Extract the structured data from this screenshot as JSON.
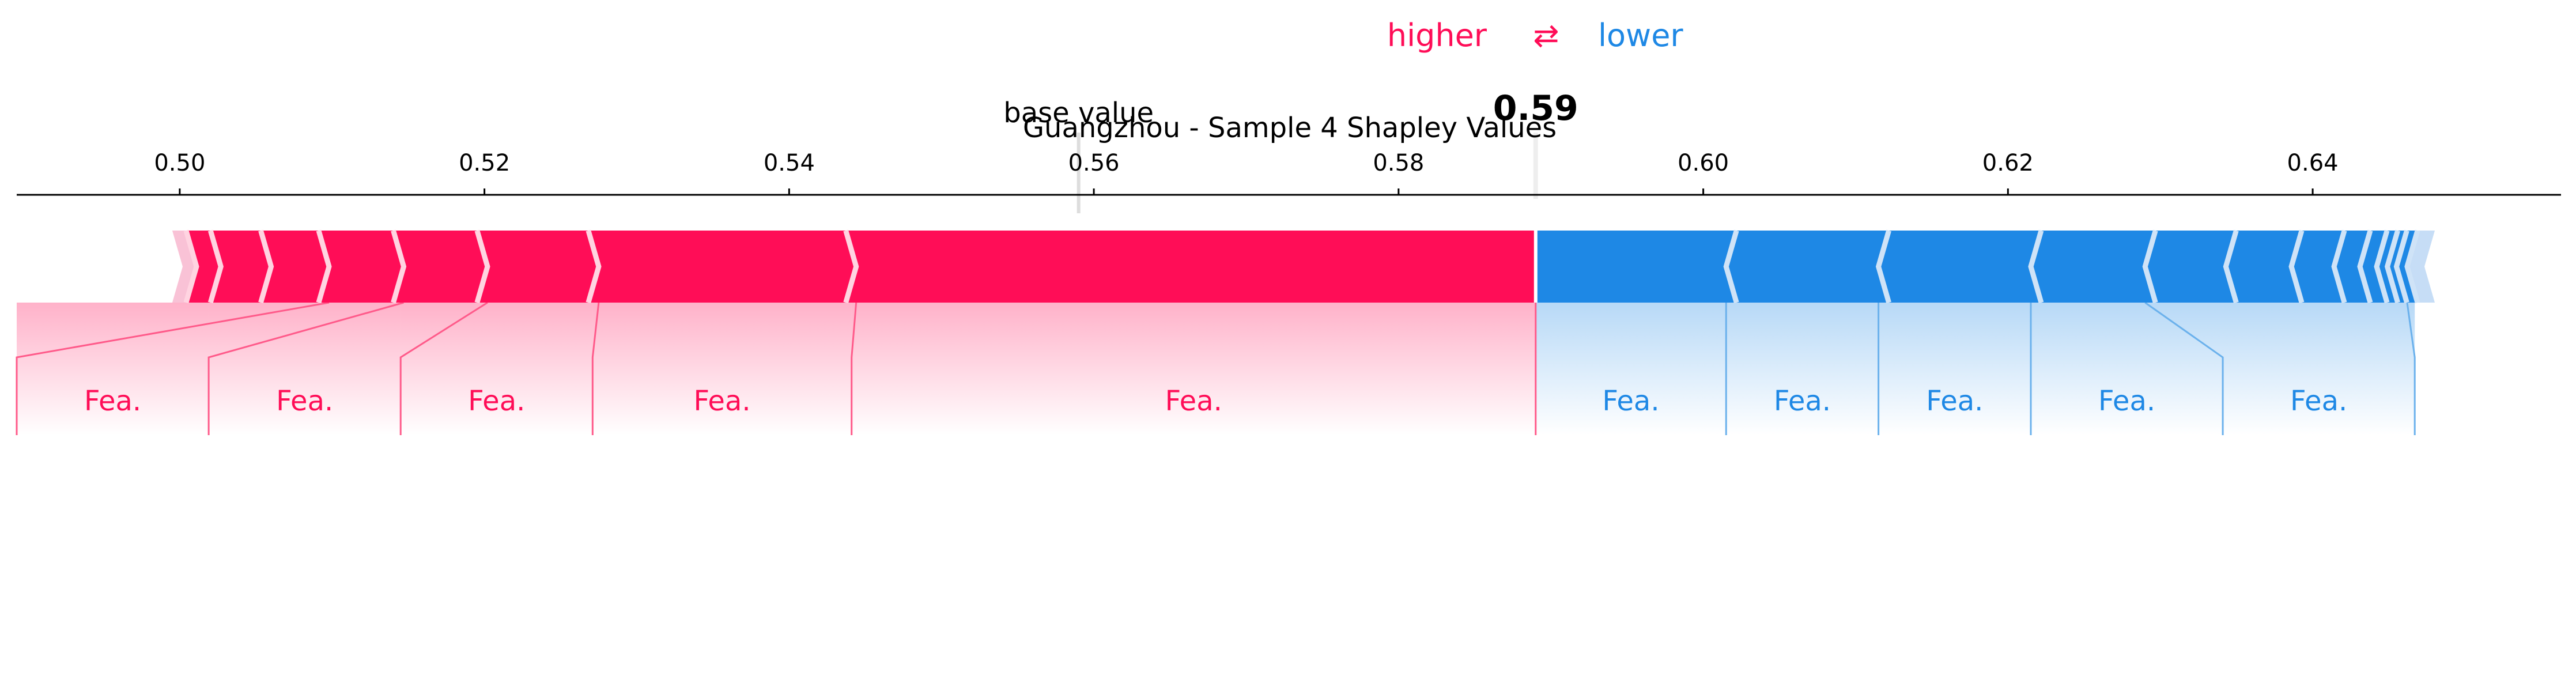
{
  "chart_data": {
    "type": "force",
    "title": "Guangzhou - Sample 4 Shapley Values",
    "legend": {
      "higher_label": "higher",
      "arrow_glyph": "⇄",
      "lower_label": "lower"
    },
    "base_value_label": "base value",
    "base_value": 0.559,
    "output_value": 0.589,
    "output_value_label": "0.59",
    "xlim": [
      0.4893,
      0.6563
    ],
    "ticks": [
      {
        "value": 0.5,
        "label": "0.50"
      },
      {
        "value": 0.52,
        "label": "0.52"
      },
      {
        "value": 0.54,
        "label": "0.54"
      },
      {
        "value": 0.56,
        "label": "0.56"
      },
      {
        "value": 0.58,
        "label": "0.58"
      },
      {
        "value": 0.6,
        "label": "0.60"
      },
      {
        "value": 0.62,
        "label": "0.62"
      },
      {
        "value": 0.64,
        "label": "0.64"
      }
    ],
    "higher_boundaries": [
      0.5011,
      0.5027,
      0.506,
      0.5098,
      0.5147,
      0.5202,
      0.5275,
      0.5444
    ],
    "lower_boundaries": [
      0.6015,
      0.6115,
      0.6215,
      0.629,
      0.6343,
      0.6386,
      0.6414,
      0.6431,
      0.6442,
      0.6449,
      0.6455,
      0.6462
    ],
    "higher_labels": [
      {
        "text": "Fea.",
        "range": [
          0.4893,
          0.5019
        ]
      },
      {
        "text": "Fea.",
        "range": [
          0.5019,
          0.5145
        ]
      },
      {
        "text": "Fea.",
        "range": [
          0.5145,
          0.5271
        ]
      },
      {
        "text": "Fea.",
        "range": [
          0.5271,
          0.5441
        ]
      },
      {
        "text": "Fea.",
        "range": [
          0.5441,
          0.589
        ]
      }
    ],
    "lower_labels": [
      {
        "text": "Fea.",
        "range": [
          0.589,
          0.6015
        ]
      },
      {
        "text": "Fea.",
        "range": [
          0.6015,
          0.6115
        ]
      },
      {
        "text": "Fea.",
        "range": [
          0.6115,
          0.6215
        ]
      },
      {
        "text": "Fea.",
        "range": [
          0.6215,
          0.6341
        ]
      },
      {
        "text": "Fea.",
        "range": [
          0.6341,
          0.6467
        ]
      }
    ],
    "colors": {
      "higher": "#ff0d57",
      "lower": "#1e88e5",
      "higher_line": "#ff5a8a",
      "lower_line": "#6bb1ec",
      "axis": "#000000"
    }
  }
}
